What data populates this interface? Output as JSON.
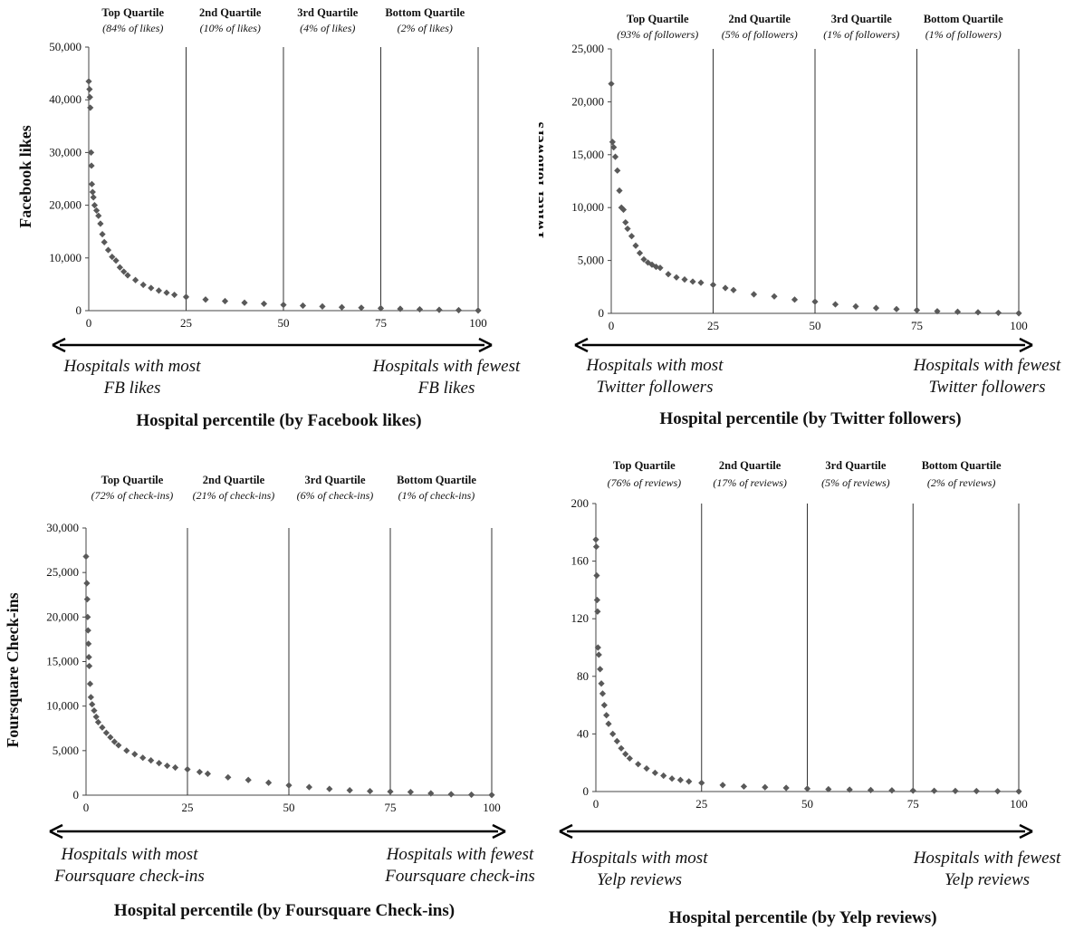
{
  "chart_data": [
    {
      "type": "scatter",
      "ylabel": "Facebook likes",
      "xlabel": "Hospital percentile (by Facebook likes)",
      "xlim": [
        0,
        100
      ],
      "ylim": [
        0,
        50000
      ],
      "x_ticks": [
        "0",
        "25",
        "50",
        "75",
        "100"
      ],
      "y_ticks": [
        "0",
        "10,000",
        "20,000",
        "30,000",
        "40,000",
        "50,000"
      ],
      "quartile_boundaries": [
        25,
        50,
        75,
        100
      ],
      "quartiles": [
        {
          "name": "Top Quartile",
          "share": "(84% of likes)"
        },
        {
          "name": "2nd Quartile",
          "share": "(10% of likes)"
        },
        {
          "name": "3rd Quartile",
          "share": "(4% of likes)"
        },
        {
          "name": "Bottom Quartile",
          "share": "(2% of likes)"
        }
      ],
      "left_note": [
        "Hospitals with most",
        "FB likes"
      ],
      "right_note": [
        "Hospitals with fewest",
        "FB likes"
      ],
      "points": [
        [
          0,
          43500
        ],
        [
          0.2,
          42000
        ],
        [
          0.3,
          40500
        ],
        [
          0.4,
          38500
        ],
        [
          0.6,
          30000
        ],
        [
          0.7,
          27500
        ],
        [
          0.8,
          24000
        ],
        [
          1,
          22500
        ],
        [
          1.2,
          21500
        ],
        [
          1.5,
          20000
        ],
        [
          2,
          19000
        ],
        [
          2.5,
          18000
        ],
        [
          3,
          16500
        ],
        [
          3.5,
          14500
        ],
        [
          4,
          13000
        ],
        [
          5,
          11500
        ],
        [
          6,
          10200
        ],
        [
          7,
          9500
        ],
        [
          8,
          8200
        ],
        [
          9,
          7400
        ],
        [
          10,
          6700
        ],
        [
          12,
          5800
        ],
        [
          14,
          4900
        ],
        [
          16,
          4300
        ],
        [
          18,
          3800
        ],
        [
          20,
          3400
        ],
        [
          22,
          3000
        ],
        [
          25,
          2600
        ],
        [
          30,
          2100
        ],
        [
          35,
          1800
        ],
        [
          40,
          1500
        ],
        [
          45,
          1300
        ],
        [
          50,
          1100
        ],
        [
          55,
          950
        ],
        [
          60,
          800
        ],
        [
          65,
          650
        ],
        [
          70,
          550
        ],
        [
          75,
          450
        ],
        [
          80,
          350
        ],
        [
          85,
          250
        ],
        [
          90,
          150
        ],
        [
          95,
          80
        ],
        [
          100,
          20
        ]
      ]
    },
    {
      "type": "scatter",
      "ylabel": "Twitter followers",
      "xlabel": "Hospital percentile (by Twitter followers)",
      "xlim": [
        0,
        100
      ],
      "ylim": [
        0,
        25000
      ],
      "x_ticks": [
        "0",
        "25",
        "50",
        "75",
        "100"
      ],
      "y_ticks": [
        "0",
        "5,000",
        "10,000",
        "15,000",
        "20,000",
        "25,000"
      ],
      "quartile_boundaries": [
        25,
        50,
        75,
        100
      ],
      "quartiles": [
        {
          "name": "Top Quartile",
          "share": "(93% of followers)"
        },
        {
          "name": "2nd Quartile",
          "share": "(5% of followers)"
        },
        {
          "name": "3rd Quartile",
          "share": "(1% of followers)"
        },
        {
          "name": "Bottom Quartile",
          "share": "(1% of followers)"
        }
      ],
      "left_note": [
        "Hospitals with most",
        "Twitter followers"
      ],
      "right_note": [
        "Hospitals with fewest",
        "Twitter followers"
      ],
      "points": [
        [
          0,
          21700
        ],
        [
          0.3,
          16200
        ],
        [
          0.6,
          15700
        ],
        [
          1,
          14800
        ],
        [
          1.5,
          13500
        ],
        [
          2,
          11600
        ],
        [
          2.5,
          10000
        ],
        [
          3,
          9800
        ],
        [
          3.5,
          8600
        ],
        [
          4,
          8000
        ],
        [
          5,
          7300
        ],
        [
          6,
          6400
        ],
        [
          7,
          5700
        ],
        [
          8,
          5100
        ],
        [
          9,
          4800
        ],
        [
          10,
          4600
        ],
        [
          11,
          4400
        ],
        [
          12,
          4300
        ],
        [
          14,
          3700
        ],
        [
          16,
          3400
        ],
        [
          18,
          3200
        ],
        [
          20,
          3000
        ],
        [
          22,
          2900
        ],
        [
          25,
          2700
        ],
        [
          28,
          2400
        ],
        [
          30,
          2200
        ],
        [
          35,
          1800
        ],
        [
          40,
          1600
        ],
        [
          45,
          1300
        ],
        [
          50,
          1100
        ],
        [
          55,
          850
        ],
        [
          60,
          650
        ],
        [
          65,
          500
        ],
        [
          70,
          400
        ],
        [
          75,
          300
        ],
        [
          80,
          200
        ],
        [
          85,
          150
        ],
        [
          90,
          100
        ],
        [
          95,
          50
        ],
        [
          100,
          10
        ]
      ]
    },
    {
      "type": "scatter",
      "ylabel": "Foursquare Check-ins",
      "xlabel": "Hospital percentile (by Foursquare Check-ins)",
      "xlim": [
        0,
        100
      ],
      "ylim": [
        0,
        30000
      ],
      "x_ticks": [
        "0",
        "25",
        "50",
        "75",
        "100"
      ],
      "y_ticks": [
        "0",
        "5,000",
        "10,000",
        "15,000",
        "20,000",
        "25,000",
        "30,000"
      ],
      "quartile_boundaries": [
        25,
        50,
        75,
        100
      ],
      "quartiles": [
        {
          "name": "Top Quartile",
          "share": "(72% of check-ins)"
        },
        {
          "name": "2nd Quartile",
          "share": "(21% of check-ins)"
        },
        {
          "name": "3rd Quartile",
          "share": "(6% of check-ins)"
        },
        {
          "name": "Bottom Quartile",
          "share": "(1% of check-ins)"
        }
      ],
      "left_note": [
        "Hospitals with most",
        "Foursquare check-ins"
      ],
      "right_note": [
        "Hospitals with fewest",
        "Foursquare check-ins"
      ],
      "points": [
        [
          0,
          26800
        ],
        [
          0.2,
          23800
        ],
        [
          0.3,
          22000
        ],
        [
          0.4,
          20000
        ],
        [
          0.5,
          18500
        ],
        [
          0.6,
          17000
        ],
        [
          0.7,
          15500
        ],
        [
          0.8,
          14500
        ],
        [
          1,
          12500
        ],
        [
          1.2,
          11000
        ],
        [
          1.5,
          10200
        ],
        [
          2,
          9500
        ],
        [
          2.5,
          8800
        ],
        [
          3,
          8200
        ],
        [
          4,
          7600
        ],
        [
          5,
          7000
        ],
        [
          6,
          6500
        ],
        [
          7,
          6000
        ],
        [
          8,
          5600
        ],
        [
          10,
          5000
        ],
        [
          12,
          4600
        ],
        [
          14,
          4200
        ],
        [
          16,
          3900
        ],
        [
          18,
          3600
        ],
        [
          20,
          3300
        ],
        [
          22,
          3100
        ],
        [
          25,
          2900
        ],
        [
          28,
          2600
        ],
        [
          30,
          2400
        ],
        [
          35,
          2000
        ],
        [
          40,
          1700
        ],
        [
          45,
          1400
        ],
        [
          50,
          1100
        ],
        [
          55,
          900
        ],
        [
          60,
          700
        ],
        [
          65,
          550
        ],
        [
          70,
          450
        ],
        [
          75,
          400
        ],
        [
          80,
          350
        ],
        [
          85,
          200
        ],
        [
          90,
          100
        ],
        [
          95,
          50
        ],
        [
          100,
          20
        ]
      ]
    },
    {
      "type": "scatter",
      "ylabel": "",
      "xlabel": "Hospital percentile (by Yelp reviews)",
      "xlim": [
        0,
        100
      ],
      "ylim": [
        0,
        200
      ],
      "x_ticks": [
        "0",
        "25",
        "50",
        "75",
        "100"
      ],
      "y_ticks": [
        "0",
        "40",
        "80",
        "120",
        "160",
        "200"
      ],
      "quartile_boundaries": [
        25,
        50,
        75,
        100
      ],
      "quartiles": [
        {
          "name": "Top Quartile",
          "share": "(76% of reviews)"
        },
        {
          "name": "2nd Quartile",
          "share": "(17% of reviews)"
        },
        {
          "name": "3rd Quartile",
          "share": "(5% of reviews)"
        },
        {
          "name": "Bottom Quartile",
          "share": "(2% of reviews)"
        }
      ],
      "left_note": [
        "Hospitals with most",
        "Yelp reviews"
      ],
      "right_note": [
        "Hospitals with fewest",
        "Yelp reviews"
      ],
      "points": [
        [
          0,
          175
        ],
        [
          0.1,
          170
        ],
        [
          0.2,
          150
        ],
        [
          0.3,
          133
        ],
        [
          0.4,
          125
        ],
        [
          0.5,
          100
        ],
        [
          0.7,
          95
        ],
        [
          1,
          85
        ],
        [
          1.3,
          75
        ],
        [
          1.6,
          68
        ],
        [
          2,
          60
        ],
        [
          2.5,
          53
        ],
        [
          3,
          47
        ],
        [
          4,
          40
        ],
        [
          5,
          35
        ],
        [
          6,
          30
        ],
        [
          7,
          26
        ],
        [
          8,
          23
        ],
        [
          10,
          19
        ],
        [
          12,
          16
        ],
        [
          14,
          13
        ],
        [
          16,
          11
        ],
        [
          18,
          9
        ],
        [
          20,
          8
        ],
        [
          22,
          7
        ],
        [
          25,
          6
        ],
        [
          30,
          4.5
        ],
        [
          35,
          3.5
        ],
        [
          40,
          3
        ],
        [
          45,
          2.5
        ],
        [
          50,
          2
        ],
        [
          55,
          1.6
        ],
        [
          60,
          1.3
        ],
        [
          65,
          1
        ],
        [
          70,
          0.8
        ],
        [
          75,
          0.6
        ],
        [
          80,
          0.5
        ],
        [
          85,
          0.4
        ],
        [
          90,
          0.3
        ],
        [
          95,
          0.2
        ],
        [
          100,
          0.1
        ]
      ]
    }
  ]
}
